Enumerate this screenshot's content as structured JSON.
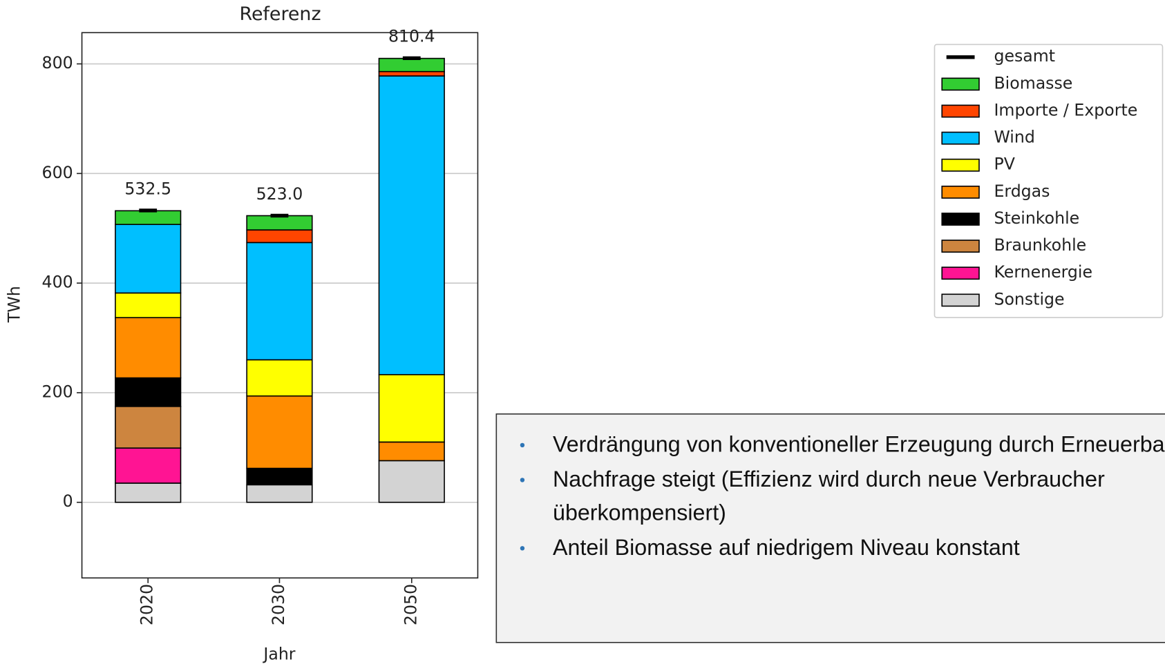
{
  "chart_data": {
    "type": "stacked-bar",
    "title": "Referenz",
    "x_label": "Jahr",
    "y_label": "TWh",
    "categories": [
      "2020",
      "2030",
      "2050"
    ],
    "series": [
      {
        "name": "Sonstige",
        "color": "#d3d3d3",
        "values": [
          35,
          32,
          76
        ]
      },
      {
        "name": "Kernenergie",
        "color": "#ff1493",
        "values": [
          64,
          0,
          0
        ]
      },
      {
        "name": "Braunkohle",
        "color": "#cd853f",
        "values": [
          76,
          0,
          0
        ]
      },
      {
        "name": "Steinkohle",
        "color": "#000000",
        "values": [
          52,
          30,
          0
        ]
      },
      {
        "name": "Erdgas",
        "color": "#ff8c00",
        "values": [
          110,
          132,
          34
        ]
      },
      {
        "name": "PV",
        "color": "#ffff00",
        "values": [
          45,
          66,
          123
        ]
      },
      {
        "name": "Wind",
        "color": "#00bfff",
        "values": [
          125,
          214,
          545
        ]
      },
      {
        "name": "Importe / Exporte",
        "color": "#ff4500",
        "values": [
          0,
          23,
          8
        ]
      },
      {
        "name": "Biomasse",
        "color": "#32cd32",
        "values": [
          25,
          26,
          24
        ]
      }
    ],
    "total": {
      "name": "gesamt",
      "color": "#000000",
      "values": [
        532.5,
        523.0,
        810.4
      ],
      "value_labels": [
        "532.5",
        "523.0",
        "810.4"
      ]
    },
    "ylim": [
      -138,
      857
    ],
    "yticks": [
      0,
      200,
      400,
      600,
      800
    ],
    "grid": true,
    "legend": "upper right"
  },
  "notes": [
    "Verdrängung von konventioneller Erzeugung durch Erneuerbare",
    "Nachfrage steigt (Effizienz wird durch neue Verbraucher überkompensiert)",
    "Anteil Biomasse auf niedrigem Niveau konstant"
  ]
}
